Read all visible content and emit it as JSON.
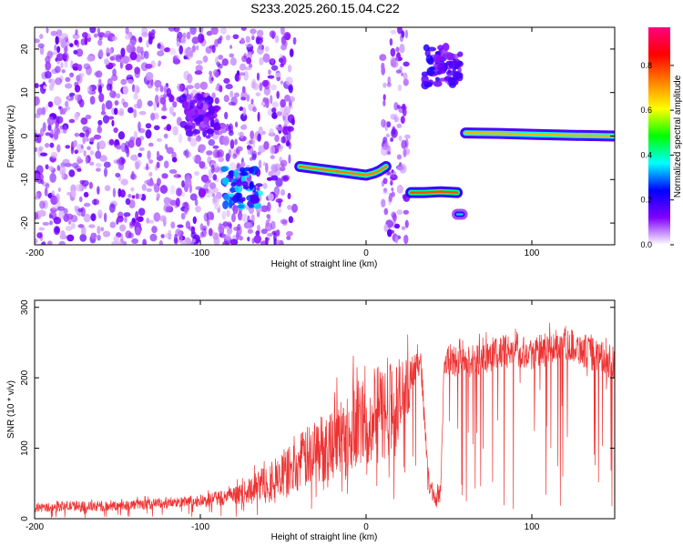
{
  "title": "S233.2025.260.15.04.C22",
  "chart_data": [
    {
      "type": "heatmap",
      "title": "S233.2025.260.15.04.C22",
      "xlabel": "Height of straight line (km)",
      "ylabel": "Frequency (Hz)",
      "xlim": [
        -200,
        150
      ],
      "ylim": [
        -25,
        25
      ],
      "xticks": [
        -200,
        -100,
        0,
        100
      ],
      "xtick_labels": [
        "-200",
        "-100",
        "0",
        "100"
      ],
      "yticks": [
        -20,
        -10,
        0,
        10,
        20
      ],
      "ytick_labels": [
        "-20",
        "-10",
        "0",
        "10",
        "20"
      ],
      "colorbar": {
        "label": "Normalized spectral amplitude",
        "range": [
          0,
          0.97
        ],
        "ticks": [
          0.0,
          0.2,
          0.4,
          0.6,
          0.8
        ],
        "tick_labels": [
          "0.0",
          "0.2",
          "0.4",
          "0.6",
          "0.8"
        ],
        "colors": [
          "#ffffff",
          "#8000ff",
          "#0000ff",
          "#00ffff",
          "#00ff00",
          "#ffff00",
          "#ff8000",
          "#ff0000",
          "#ff0080"
        ]
      },
      "features": [
        {
          "name": "noise-region",
          "x_range": [
            -200,
            -43
          ],
          "y_range": [
            -25,
            25
          ],
          "amplitude": 0.1
        },
        {
          "name": "blob-1",
          "x_center": -100,
          "y_center": 5,
          "amplitude": 0.12
        },
        {
          "name": "blob-2",
          "x_center": -75,
          "y_center": -12,
          "amplitude": 0.25
        },
        {
          "name": "noise-strip",
          "x_range": [
            10,
            25
          ],
          "y_range": [
            -25,
            25
          ],
          "amplitude": 0.1
        },
        {
          "name": "patch-1",
          "x_center": 46,
          "y_center": 16,
          "amplitude": 0.15
        }
      ],
      "tracks": [
        {
          "name": "track-1",
          "x": [
            -40,
            -30,
            -20,
            -10,
            0,
            5,
            8,
            12
          ],
          "y": [
            -7,
            -7.5,
            -8,
            -8.5,
            -9,
            -8.5,
            -8,
            -7
          ],
          "amplitude": 0.75
        },
        {
          "name": "track-2",
          "x": [
            27,
            35,
            45,
            55
          ],
          "y": [
            -13,
            -13,
            -12.8,
            -13
          ],
          "amplitude": 0.8
        },
        {
          "name": "track-3",
          "x": [
            55,
            58
          ],
          "y": [
            -18,
            -18
          ],
          "amplitude": 0.35
        },
        {
          "name": "track-4",
          "x": [
            60,
            80,
            100,
            120,
            150
          ],
          "y": [
            0.7,
            0.6,
            0.4,
            0.2,
            0.0
          ],
          "amplitude": 0.7
        }
      ]
    },
    {
      "type": "line",
      "xlabel": "Height of straight line (km)",
      "ylabel": "SNR (10 * v/v)",
      "xlim": [
        -200,
        150
      ],
      "ylim": [
        0,
        310
      ],
      "xticks": [
        -200,
        -100,
        0,
        100
      ],
      "xtick_labels": [
        "-200",
        "-100",
        "0",
        "100"
      ],
      "yticks": [
        0,
        100,
        200,
        300
      ],
      "ytick_labels": [
        "0",
        "100",
        "200",
        "300"
      ],
      "series": [
        {
          "name": "SNR",
          "color": "#ee3333",
          "x": [
            -200,
            -180,
            -160,
            -140,
            -120,
            -100,
            -80,
            -70,
            -60,
            -50,
            -40,
            -30,
            -20,
            -10,
            0,
            10,
            20,
            30,
            33,
            35,
            38,
            42,
            45,
            47,
            50,
            60,
            70,
            80,
            90,
            100,
            110,
            120,
            130,
            140,
            150
          ],
          "y": [
            15,
            18,
            17,
            20,
            22,
            25,
            32,
            40,
            55,
            60,
            80,
            95,
            110,
            130,
            140,
            150,
            160,
            215,
            225,
            150,
            50,
            25,
            40,
            215,
            225,
            220,
            230,
            235,
            240,
            235,
            240,
            250,
            240,
            230,
            220
          ],
          "noise": [
            10,
            12,
            12,
            12,
            12,
            15,
            20,
            30,
            45,
            55,
            70,
            80,
            90,
            100,
            110,
            120,
            120,
            30,
            30,
            30,
            20,
            20,
            30,
            30,
            40,
            40,
            40,
            40,
            40,
            40,
            40,
            40,
            40,
            40,
            40
          ]
        }
      ]
    }
  ]
}
